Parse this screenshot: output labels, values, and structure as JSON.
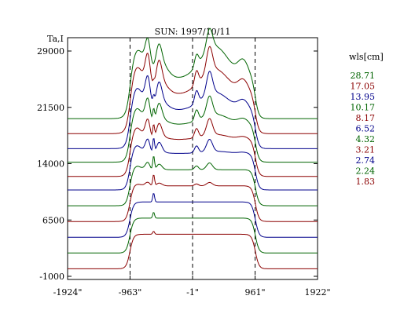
{
  "chart_data": {
    "type": "line",
    "title": "SUN: 1997/10/11",
    "ylabel": "Ta,I",
    "xlim": [
      -1924,
      1922
    ],
    "ylim": [
      -1000,
      33000
    ],
    "x_ticks": [
      -1924,
      -963,
      -1,
      961,
      1922
    ],
    "x_tick_labels": [
      "-1924\"",
      "-963\"",
      "-1\"",
      "961\"",
      "1922\""
    ],
    "y_ticks": [
      -1000,
      6500,
      14000,
      21500,
      29000
    ],
    "y_tick_labels": [
      "-1000",
      "6500",
      "14000",
      "21500",
      "29000"
    ],
    "vlines": [
      -963,
      -1,
      961
    ],
    "legend_title": "wls[cm]",
    "legend_position": "right",
    "series": [
      {
        "name": "1.83",
        "color": "#8b0000",
        "offset": 0,
        "limb": 4600,
        "peak": 400,
        "bumps": 0,
        "amp": 0
      },
      {
        "name": "2.24",
        "color": "#006400",
        "offset": 2100,
        "limb": 4650,
        "peak": 800,
        "bumps": 0,
        "amp": 0
      },
      {
        "name": "2.74",
        "color": "#00008b",
        "offset": 4200,
        "limb": 4700,
        "peak": 1200,
        "bumps": 0,
        "amp": 0
      },
      {
        "name": "3.21",
        "color": "#8b0000",
        "offset": 6300,
        "limb": 4750,
        "peak": 1600,
        "bumps": 500,
        "amp": 0
      },
      {
        "name": "4.32",
        "color": "#006400",
        "offset": 8400,
        "limb": 4800,
        "peak": 2000,
        "bumps": 1000,
        "amp": 0
      },
      {
        "name": "6.52",
        "color": "#00008b",
        "offset": 10500,
        "limb": 4850,
        "peak": 2200,
        "bumps": 1800,
        "amp": 300
      },
      {
        "name": "8.17",
        "color": "#8b0000",
        "offset": 12300,
        "limb": 4900,
        "peak": 2000,
        "bumps": 2400,
        "amp": 700
      },
      {
        "name": "10.17",
        "color": "#006400",
        "offset": 14200,
        "limb": 5000,
        "peak": 1800,
        "bumps": 2800,
        "amp": 1400
      },
      {
        "name": "13.95",
        "color": "#00008b",
        "offset": 16000,
        "limb": 5100,
        "peak": 1200,
        "bumps": 3300,
        "amp": 2400
      },
      {
        "name": "17.05",
        "color": "#8b0000",
        "offset": 18000,
        "limb": 5200,
        "peak": 600,
        "bumps": 3600,
        "amp": 3400
      },
      {
        "name": "28.71",
        "color": "#006400",
        "offset": 20000,
        "limb": 5300,
        "peak": 0,
        "bumps": 3000,
        "amp": 4300
      }
    ]
  },
  "legend_order": [
    "28.71",
    "17.05",
    "13.95",
    "10.17",
    "8.17",
    "6.52",
    "4.32",
    "3.21",
    "2.74",
    "2.24",
    "1.83"
  ]
}
